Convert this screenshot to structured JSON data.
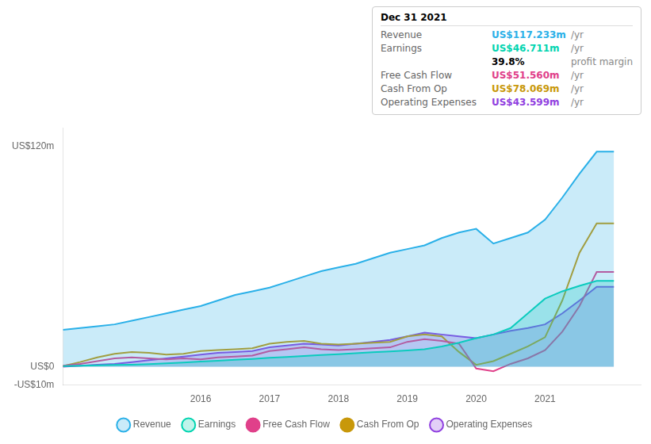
{
  "chart_data": {
    "type": "line",
    "x": [
      2014.0,
      2014.25,
      2014.5,
      2014.75,
      2015.0,
      2015.25,
      2015.5,
      2015.75,
      2016.0,
      2016.25,
      2016.5,
      2016.75,
      2017.0,
      2017.25,
      2017.5,
      2017.75,
      2018.0,
      2018.25,
      2018.5,
      2018.75,
      2019.0,
      2019.25,
      2019.5,
      2019.75,
      2020.0,
      2020.25,
      2020.5,
      2020.75,
      2021.0,
      2021.25,
      2021.5,
      2021.75,
      2022.0
    ],
    "xlim": [
      2014.0,
      2022.4
    ],
    "xticks": [
      2016,
      2017,
      2018,
      2019,
      2020,
      2021
    ],
    "ylim": [
      -10,
      130
    ],
    "yticks": [
      {
        "value": -10,
        "label": "-US$10m"
      },
      {
        "value": 0,
        "label": "US$0"
      },
      {
        "value": 120,
        "label": "US$120m"
      }
    ],
    "grid": false,
    "legend": "bottom",
    "series": [
      {
        "name": "Revenue",
        "color": "#2ab0e8",
        "type": "area",
        "values": [
          20,
          21,
          22,
          23,
          25,
          27,
          29,
          31,
          33,
          36,
          39,
          41,
          43,
          46,
          49,
          52,
          54,
          56,
          59,
          62,
          64,
          66,
          70,
          73,
          75,
          67,
          70,
          73,
          80,
          92,
          105,
          117,
          117
        ]
      },
      {
        "name": "Earnings",
        "color": "#00d4b0",
        "type": "area",
        "values": [
          0.3,
          0.5,
          0.7,
          0.9,
          1.1,
          1.4,
          1.8,
          2.2,
          2.8,
          3.2,
          3.7,
          4.2,
          4.8,
          5.3,
          5.8,
          6.3,
          6.8,
          7.3,
          7.8,
          8.3,
          8.8,
          9.5,
          11.0,
          13.0,
          15.5,
          17.5,
          21.0,
          29.0,
          37.0,
          41.0,
          44.0,
          46.7,
          46.7
        ]
      },
      {
        "name": "Free Cash Flow",
        "color": "#e0408a",
        "type": "line",
        "values": [
          0.5,
          1.5,
          3.0,
          4.5,
          5.0,
          4.5,
          4.0,
          4.5,
          4.0,
          5.0,
          5.5,
          6.0,
          8.5,
          9.5,
          10.5,
          9.5,
          9.0,
          9.5,
          10.0,
          10.5,
          13.5,
          15.0,
          14.0,
          12.5,
          -1.0,
          -2.5,
          1.5,
          4.5,
          9.0,
          19.0,
          33.0,
          51.5,
          51.5
        ]
      },
      {
        "name": "Cash From Op",
        "color": "#c8980a",
        "type": "line",
        "values": [
          0.3,
          2.5,
          5.0,
          7.0,
          8.0,
          7.5,
          6.5,
          7.0,
          8.5,
          9.0,
          9.5,
          10.0,
          12.5,
          13.5,
          14.0,
          12.5,
          12.0,
          12.5,
          13.0,
          13.5,
          16.5,
          17.5,
          16.5,
          8.0,
          1.0,
          3.0,
          7.0,
          11.0,
          16.0,
          36.0,
          62.0,
          78.0,
          78.0
        ]
      },
      {
        "name": "Operating Expenses",
        "color": "#9040e0",
        "type": "area",
        "values": [
          0.0,
          0.5,
          1.0,
          1.5,
          2.5,
          3.5,
          4.5,
          5.5,
          6.5,
          7.5,
          8.0,
          8.5,
          10.5,
          11.5,
          12.5,
          12.0,
          11.5,
          12.5,
          13.5,
          14.5,
          16.5,
          18.5,
          17.5,
          16.5,
          15.5,
          17.5,
          19.5,
          21.0,
          23.0,
          29.0,
          36.0,
          43.5,
          43.5
        ]
      }
    ],
    "annotations": {
      "title": "Dec 31 2021",
      "rows": [
        {
          "label": "Revenue",
          "value": "US$117.233m",
          "unit": "/yr",
          "color": "#2ab0e8"
        },
        {
          "label": "Earnings",
          "value": "US$46.711m",
          "unit": "/yr",
          "color": "#00d4b0"
        },
        {
          "value": "39.8%",
          "unit": "profit margin",
          "color": "#000000"
        },
        {
          "label": "Free Cash Flow",
          "value": "US$51.560m",
          "unit": "/yr",
          "color": "#e0408a"
        },
        {
          "label": "Cash From Op",
          "value": "US$78.069m",
          "unit": "/yr",
          "color": "#c8980a"
        },
        {
          "label": "Operating Expenses",
          "value": "US$43.599m",
          "unit": "/yr",
          "color": "#9040e0"
        }
      ]
    }
  }
}
